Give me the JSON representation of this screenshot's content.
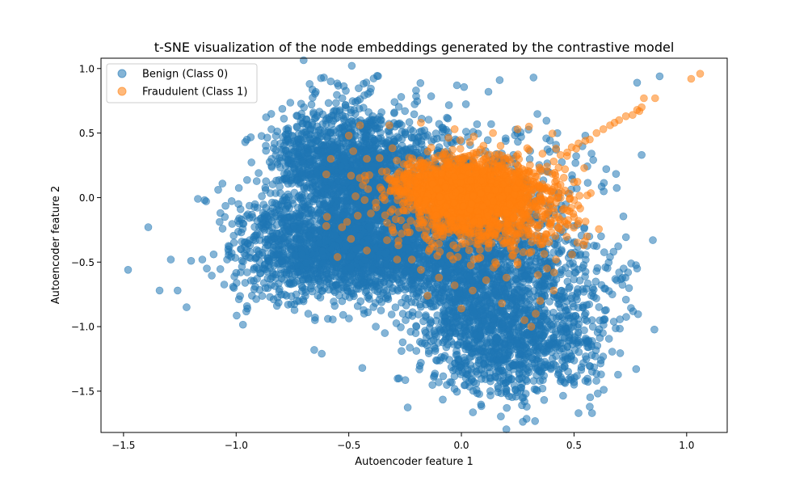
{
  "chart_data": {
    "type": "scatter",
    "title": "t-SNE visualization of the node embeddings generated by the contrastive model",
    "xlabel": "Autoencoder feature 1",
    "ylabel": "Autoencoder feature 2",
    "xlim": [
      -1.6,
      1.18
    ],
    "ylim": [
      -1.82,
      1.08
    ],
    "xticks": [
      -1.5,
      -1.0,
      -0.5,
      0.0,
      0.5,
      1.0
    ],
    "xtick_labels": [
      "−1.5",
      "−1.0",
      "−0.5",
      "0.0",
      "0.5",
      "1.0"
    ],
    "yticks": [
      -1.5,
      -1.0,
      -0.5,
      0.0,
      0.5,
      1.0
    ],
    "ytick_labels": [
      "−1.5",
      "−1.0",
      "−0.5",
      "0.0",
      "0.5",
      "1.0"
    ],
    "grid": false,
    "legend_position": "upper-left",
    "series": [
      {
        "name": "Benign (Class 0)",
        "color": "#1f77b4",
        "alpha": 0.55,
        "points": [
          [
            -1.48,
            -0.56
          ],
          [
            -1.39,
            -0.23
          ],
          [
            -1.34,
            -0.72
          ],
          [
            -1.29,
            -0.48
          ],
          [
            -1.26,
            -0.72
          ],
          [
            -1.22,
            -0.85
          ],
          [
            -1.2,
            -0.49
          ],
          [
            -1.17,
            -0.01
          ],
          [
            -1.15,
            -0.48
          ],
          [
            -1.14,
            -0.02
          ],
          [
            -1.13,
            -0.55
          ],
          [
            -1.1,
            -0.44
          ],
          [
            -1.08,
            0.06
          ],
          [
            -1.07,
            -0.12
          ],
          [
            -1.05,
            -0.15
          ],
          [
            -1.04,
            -0.48
          ],
          [
            -1.03,
            -0.38
          ],
          [
            -1.02,
            -0.43
          ],
          [
            -1.01,
            -0.7
          ],
          [
            -0.99,
            -0.05
          ],
          [
            -0.98,
            -0.58
          ],
          [
            -0.97,
            -0.2
          ],
          [
            -0.96,
            0.43
          ],
          [
            -0.95,
            -0.86
          ],
          [
            -0.94,
            -0.33
          ],
          [
            -0.93,
            -0.76
          ],
          [
            -0.92,
            -0.71
          ],
          [
            -0.9,
            0.19
          ],
          [
            -0.88,
            -0.24
          ],
          [
            -0.87,
            -0.7
          ],
          [
            -0.85,
            -0.77
          ],
          [
            -0.83,
            0.42
          ],
          [
            -0.8,
            0.37
          ],
          [
            -0.77,
            -0.83
          ],
          [
            -0.73,
            -0.8
          ],
          [
            -0.71,
            0.65
          ],
          [
            -0.68,
            -0.9
          ],
          [
            -0.65,
            -0.95
          ],
          [
            -0.62,
            -1.21
          ],
          [
            -0.6,
            0.57
          ],
          [
            -0.55,
            0.62
          ],
          [
            -0.5,
            0.58
          ],
          [
            -0.47,
            0.74
          ],
          [
            -0.44,
            -1.32
          ],
          [
            -0.42,
            0.55
          ],
          [
            -0.38,
            -1.0
          ],
          [
            -0.34,
            -1.05
          ],
          [
            -0.3,
            0.45
          ],
          [
            -0.26,
            -0.9
          ],
          [
            -0.2,
            -1.0
          ],
          [
            -0.18,
            -1.28
          ],
          [
            -0.12,
            -1.38
          ],
          [
            -0.05,
            -1.43
          ],
          [
            -0.02,
            0.87
          ],
          [
            0.02,
            -1.4
          ],
          [
            0.06,
            -0.02
          ],
          [
            0.12,
            0.82
          ],
          [
            0.17,
            0.91
          ],
          [
            0.21,
            -1.37
          ],
          [
            0.24,
            -1.49
          ],
          [
            0.28,
            -1.58
          ],
          [
            0.29,
            -1.62
          ],
          [
            0.32,
            0.93
          ],
          [
            0.36,
            -1.48
          ],
          [
            0.38,
            -0.6
          ],
          [
            0.41,
            -1.29
          ],
          [
            0.45,
            -0.98
          ],
          [
            0.48,
            -1.05
          ],
          [
            0.5,
            -1.43
          ],
          [
            0.52,
            -1.67
          ],
          [
            0.55,
            -1.42
          ],
          [
            0.57,
            -1.62
          ],
          [
            0.58,
            -1.67
          ],
          [
            0.6,
            -0.57
          ],
          [
            0.62,
            -1.37
          ],
          [
            0.66,
            -0.46
          ],
          [
            0.7,
            -0.58
          ],
          [
            0.72,
            -0.55
          ],
          [
            0.74,
            -0.58
          ],
          [
            0.78,
            -0.55
          ],
          [
            0.8,
            0.33
          ],
          [
            0.85,
            -0.33
          ],
          [
            0.88,
            0.94
          ],
          [
            0.78,
            0.89
          ],
          [
            0.55,
            0.48
          ],
          [
            0.62,
            -0.3
          ],
          [
            0.67,
            -0.75
          ],
          [
            0.58,
            -0.95
          ],
          [
            0.45,
            -1.32
          ],
          [
            0.42,
            0.41
          ]
        ],
        "clusters": [
          {
            "cx": -0.45,
            "cy": 0.15,
            "sx": 0.16,
            "sy": 0.28,
            "n": 1600
          },
          {
            "cx": -0.52,
            "cy": -0.45,
            "sx": 0.17,
            "sy": 0.16,
            "n": 900
          },
          {
            "cx": -0.15,
            "cy": -0.42,
            "sx": 0.22,
            "sy": 0.18,
            "n": 900
          },
          {
            "cx": 0.05,
            "cy": -0.85,
            "sx": 0.15,
            "sy": 0.28,
            "n": 800
          },
          {
            "cx": 0.2,
            "cy": -1.15,
            "sx": 0.12,
            "sy": 0.22,
            "n": 400
          },
          {
            "cx": 0.45,
            "cy": -1.05,
            "sx": 0.12,
            "sy": 0.22,
            "n": 300
          },
          {
            "cx": -0.78,
            "cy": -0.35,
            "sx": 0.12,
            "sy": 0.25,
            "n": 400
          },
          {
            "cx": -0.7,
            "cy": 0.3,
            "sx": 0.08,
            "sy": 0.15,
            "n": 200
          },
          {
            "cx": 0.1,
            "cy": 0.0,
            "sx": 0.22,
            "sy": 0.3,
            "n": 500
          },
          {
            "cx": 0.35,
            "cy": -0.55,
            "sx": 0.16,
            "sy": 0.2,
            "n": 250
          }
        ]
      },
      {
        "name": "Fraudulent (Class 1)",
        "color": "#ff7f0e",
        "alpha": 0.55,
        "points": [
          [
            1.06,
            0.96
          ],
          [
            1.02,
            0.92
          ],
          [
            0.86,
            0.77
          ],
          [
            0.81,
            0.77
          ],
          [
            0.8,
            0.7
          ],
          [
            0.78,
            0.68
          ],
          [
            0.79,
            0.67
          ],
          [
            0.76,
            0.64
          ],
          [
            0.73,
            0.63
          ],
          [
            0.7,
            0.6
          ],
          [
            0.68,
            0.58
          ],
          [
            0.66,
            0.56
          ],
          [
            0.63,
            0.53
          ],
          [
            0.6,
            0.5
          ],
          [
            0.57,
            0.45
          ],
          [
            0.55,
            0.44
          ],
          [
            0.51,
            0.38
          ],
          [
            0.49,
            0.39
          ],
          [
            0.47,
            0.35
          ],
          [
            0.44,
            0.33
          ],
          [
            0.41,
            0.28
          ],
          [
            0.38,
            0.24
          ],
          [
            0.35,
            0.22
          ],
          [
            0.32,
            0.19
          ],
          [
            0.46,
            0.22
          ],
          [
            0.52,
            0.42
          ],
          [
            0.42,
            0.38
          ],
          [
            0.36,
            0.34
          ],
          [
            0.3,
            0.37
          ],
          [
            0.3,
            0.55
          ],
          [
            0.25,
            0.53
          ],
          [
            0.14,
            0.5
          ],
          [
            -0.03,
            0.53
          ],
          [
            -0.18,
            0.58
          ],
          [
            -0.32,
            0.56
          ],
          [
            -0.45,
            0.56
          ],
          [
            -0.5,
            0.48
          ],
          [
            -0.48,
            0.36
          ],
          [
            -0.42,
            0.3
          ],
          [
            -0.58,
            0.3
          ],
          [
            -0.6,
            0.18
          ],
          [
            -0.47,
            0.01
          ],
          [
            -0.49,
            0.17
          ],
          [
            -0.35,
            0.0
          ],
          [
            -0.38,
            -0.04
          ],
          [
            -0.46,
            -0.14
          ],
          [
            -0.53,
            -0.23
          ],
          [
            -0.6,
            -0.22
          ],
          [
            -0.49,
            -0.32
          ],
          [
            -0.55,
            -0.46
          ],
          [
            -0.42,
            -0.41
          ],
          [
            -0.33,
            -0.33
          ],
          [
            -0.28,
            -0.37
          ],
          [
            -0.22,
            -0.48
          ],
          [
            -0.18,
            -0.56
          ],
          [
            -0.1,
            -0.62
          ],
          [
            -0.03,
            -0.68
          ],
          [
            0.05,
            -0.72
          ],
          [
            0.11,
            -0.64
          ],
          [
            0.2,
            -0.62
          ],
          [
            0.25,
            -0.52
          ],
          [
            0.31,
            -0.42
          ],
          [
            0.36,
            -0.36
          ],
          [
            0.4,
            -0.27
          ],
          [
            0.43,
            -0.15
          ],
          [
            0.47,
            -0.1
          ],
          [
            0.52,
            -0.18
          ],
          [
            0.5,
            -0.02
          ],
          [
            0.48,
            0.03
          ],
          [
            0.39,
            -0.2
          ],
          [
            0.36,
            -0.35
          ],
          [
            0.38,
            -0.55
          ],
          [
            0.35,
            -0.8
          ],
          [
            0.33,
            -0.9
          ],
          [
            0.31,
            -1.0
          ],
          [
            0.28,
            -0.95
          ],
          [
            0.18,
            -0.82
          ],
          [
            0.0,
            -0.86
          ],
          [
            -0.15,
            -0.76
          ],
          [
            0.41,
            -0.72
          ],
          [
            0.34,
            -0.6
          ],
          [
            0.42,
            -0.48
          ],
          [
            0.5,
            0.12
          ],
          [
            0.44,
            0.1
          ],
          [
            0.38,
            0.2
          ],
          [
            0.28,
            -0.3
          ],
          [
            0.22,
            -0.4
          ],
          [
            0.15,
            -0.5
          ],
          [
            -0.05,
            -0.45
          ],
          [
            -0.12,
            -0.38
          ]
        ],
        "clusters": [
          {
            "cx": 0.06,
            "cy": 0.03,
            "sx": 0.13,
            "sy": 0.13,
            "n": 1400
          },
          {
            "cx": 0.12,
            "cy": -0.08,
            "sx": 0.2,
            "sy": 0.17,
            "n": 600
          },
          {
            "cx": -0.15,
            "cy": 0.12,
            "sx": 0.1,
            "sy": 0.1,
            "n": 250
          }
        ]
      }
    ]
  }
}
